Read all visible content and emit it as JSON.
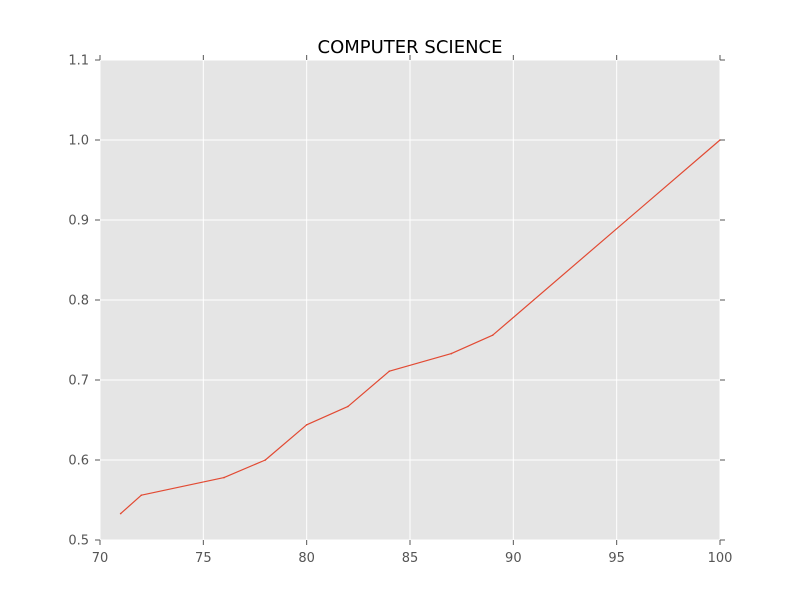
{
  "chart_data": {
    "type": "line",
    "title": "COMPUTER SCIENCE",
    "xlabel": "",
    "ylabel": "",
    "xlim": [
      70,
      100
    ],
    "ylim": [
      0.5,
      1.1
    ],
    "x_ticks": [
      70,
      75,
      80,
      85,
      90,
      95,
      100
    ],
    "y_ticks": [
      0.5,
      0.6,
      0.7,
      0.8,
      0.9,
      1.0,
      1.1
    ],
    "x_tick_labels": [
      "70",
      "75",
      "80",
      "85",
      "90",
      "95",
      "100"
    ],
    "y_tick_labels": [
      "0.5",
      "0.6",
      "0.7",
      "0.8",
      "0.9",
      "1.0",
      "1.1"
    ],
    "grid": true,
    "series": [
      {
        "color": "#e24a33",
        "x": [
          71,
          72,
          76,
          78,
          80,
          82,
          84,
          87,
          89,
          100
        ],
        "y": [
          0.533,
          0.556,
          0.578,
          0.6,
          0.644,
          0.667,
          0.711,
          0.733,
          0.756,
          1.0
        ]
      }
    ],
    "colors": {
      "plot_background": "#e5e5e5",
      "grid": "#ffffff",
      "tick_text": "#555555"
    }
  }
}
